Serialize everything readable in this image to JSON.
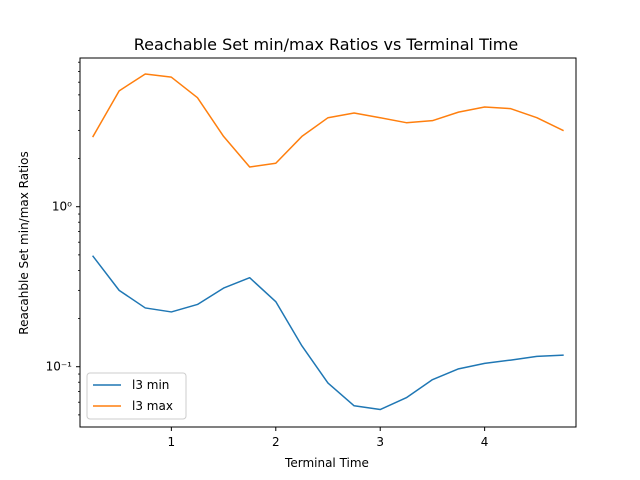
{
  "chart_data": {
    "type": "line",
    "title": "Reachable Set min/max Ratios vs Terminal Time",
    "xlabel": "Terminal Time",
    "ylabel": "Reacahble Set min/max Ratios",
    "yscale": "log",
    "xlim": [
      0.125,
      4.875
    ],
    "ylim": [
      0.042,
      8.5
    ],
    "x_ticks": [
      1,
      2,
      3,
      4
    ],
    "x_tick_labels": [
      "1",
      "2",
      "3",
      "4"
    ],
    "y_ticks": [
      0.1,
      1
    ],
    "y_tick_labels": [
      "10⁻¹",
      "10⁰"
    ],
    "grid": false,
    "legend": "lower-left",
    "x": [
      0.25,
      0.5,
      0.75,
      1.0,
      1.25,
      1.5,
      1.75,
      2.0,
      2.25,
      2.5,
      2.75,
      3.0,
      3.25,
      3.5,
      3.75,
      4.0,
      4.25,
      4.5,
      4.75
    ],
    "series": [
      {
        "name": "l3 min",
        "color": "#1f77b4",
        "values": [
          0.49,
          0.3,
          0.233,
          0.22,
          0.245,
          0.31,
          0.36,
          0.255,
          0.135,
          0.079,
          0.057,
          0.054,
          0.064,
          0.083,
          0.097,
          0.105,
          0.11,
          0.116,
          0.118
        ]
      },
      {
        "name": "l3 max",
        "color": "#ff7f0e",
        "values": [
          2.75,
          5.3,
          6.75,
          6.45,
          4.8,
          2.75,
          1.77,
          1.87,
          2.75,
          3.6,
          3.85,
          3.6,
          3.35,
          3.45,
          3.9,
          4.2,
          4.1,
          3.6,
          3.0
        ]
      }
    ]
  }
}
